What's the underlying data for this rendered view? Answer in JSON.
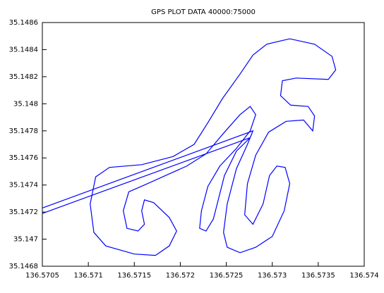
{
  "chart_data": {
    "type": "line",
    "title": "GPS PLOT DATA 40000:75000",
    "x": [
      136.5705,
      136.57279,
      136.57273,
      136.57261,
      136.57251,
      136.57247,
      136.57251,
      136.57265,
      136.57282,
      136.573,
      136.57313,
      136.57319,
      136.57314,
      136.57305,
      136.57297,
      136.5729,
      136.57279,
      136.5727,
      136.57273,
      136.57282,
      136.57296,
      136.57315,
      136.57334,
      136.57344,
      136.57346,
      136.57339,
      136.5732,
      136.57309,
      136.57311,
      136.57326,
      136.57361,
      136.57369,
      136.57365,
      136.57346,
      136.57319,
      136.57294,
      136.57279,
      136.57265,
      136.57246,
      136.5723,
      136.57215,
      136.57192,
      136.57158,
      136.57123,
      136.57108,
      136.57102,
      136.57106,
      136.57119,
      136.5715,
      136.57173,
      136.57188,
      136.57196,
      136.57188,
      136.57171,
      136.57161,
      136.57158,
      136.57161,
      136.57154,
      136.57142,
      136.57138,
      136.57144,
      136.57161,
      136.57184,
      136.57207,
      136.57228,
      136.57248,
      136.57265,
      136.57276,
      136.57282,
      136.57276,
      136.57261,
      136.57243,
      136.5723,
      136.57223,
      136.57221,
      136.57228,
      136.57236,
      136.57242,
      136.57248,
      136.57261,
      136.57276,
      136.5705
    ],
    "series": [
      {
        "color": "#0000ff",
        "values": [
          35.14723,
          35.1478,
          35.1477,
          35.14752,
          35.14726,
          35.14705,
          35.14694,
          35.1469,
          35.14694,
          35.14702,
          35.14721,
          35.14741,
          35.14753,
          35.14754,
          35.14747,
          35.14726,
          35.14711,
          35.14718,
          35.14741,
          35.14762,
          35.14779,
          35.14787,
          35.14788,
          35.1478,
          35.14791,
          35.14798,
          35.14799,
          35.14806,
          35.14817,
          35.14819,
          35.14818,
          35.14825,
          35.14835,
          35.14844,
          35.14848,
          35.14844,
          35.14836,
          35.14822,
          35.14804,
          35.14786,
          35.1477,
          35.14761,
          35.14755,
          35.14753,
          35.14746,
          35.14726,
          35.14705,
          35.14695,
          35.14689,
          35.14688,
          35.14695,
          35.14706,
          35.14716,
          35.14727,
          35.14729,
          35.14721,
          35.14711,
          35.14706,
          35.14708,
          35.14721,
          35.14735,
          35.1474,
          35.14747,
          35.14754,
          35.14763,
          35.14779,
          35.14792,
          35.14798,
          35.14792,
          35.1478,
          35.14767,
          35.14754,
          35.14739,
          35.14721,
          35.14708,
          35.14706,
          35.14715,
          35.14731,
          35.14747,
          35.14765,
          35.14775,
          35.14719
        ]
      }
    ],
    "xlim": [
      136.5705,
      136.574
    ],
    "ylim": [
      35.1468,
      35.1486
    ],
    "xticks": [
      136.5705,
      136.571,
      136.5715,
      136.572,
      136.5725,
      136.573,
      136.5735,
      136.574
    ],
    "yticks": [
      35.1468,
      35.147,
      35.1472,
      35.1474,
      35.1476,
      35.1478,
      35.148,
      35.1482,
      35.1484,
      35.1486
    ]
  }
}
